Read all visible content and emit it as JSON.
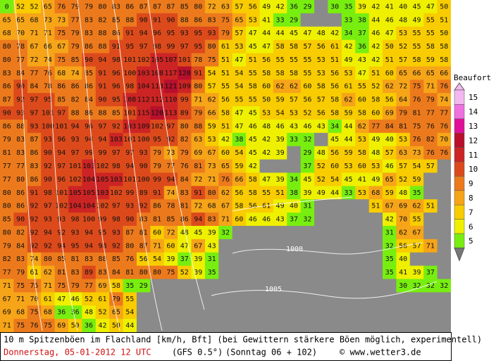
{
  "map": {
    "grid": [
      [
        0,
        52,
        52,
        65,
        76,
        79,
        79,
        80,
        83,
        86,
        87,
        87,
        87,
        85,
        80,
        72,
        63,
        57,
        56,
        49,
        42,
        36,
        29,
        null,
        30,
        35,
        39,
        42,
        41,
        40,
        45,
        47,
        50
      ],
      [
        65,
        65,
        68,
        73,
        73,
        77,
        83,
        82,
        85,
        88,
        90,
        91,
        90,
        88,
        86,
        83,
        75,
        65,
        53,
        41,
        33,
        29,
        null,
        null,
        null,
        33,
        38,
        44,
        46,
        48,
        49,
        55,
        51
      ],
      [
        68,
        70,
        71,
        71,
        75,
        79,
        83,
        88,
        86,
        91,
        94,
        96,
        95,
        93,
        95,
        93,
        79,
        57,
        47,
        44,
        44,
        45,
        47,
        48,
        42,
        34,
        37,
        46,
        47,
        53,
        55,
        55,
        50
      ],
      [
        80,
        78,
        67,
        66,
        67,
        79,
        86,
        88,
        91,
        95,
        97,
        98,
        99,
        97,
        95,
        80,
        61,
        53,
        45,
        47,
        58,
        58,
        57,
        56,
        61,
        42,
        36,
        42,
        50,
        52,
        55,
        58,
        58
      ],
      [
        80,
        77,
        72,
        74,
        75,
        85,
        90,
        94,
        98,
        101,
        102,
        105,
        107,
        101,
        78,
        75,
        51,
        47,
        51,
        56,
        55,
        55,
        55,
        53,
        51,
        49,
        43,
        42,
        51,
        57,
        58,
        59,
        58
      ],
      [
        83,
        84,
        77,
        76,
        68,
        74,
        85,
        91,
        96,
        100,
        103,
        108,
        117,
        120,
        91,
        54,
        51,
        54,
        55,
        58,
        58,
        58,
        55,
        53,
        56,
        53,
        47,
        51,
        60,
        65,
        66,
        65,
        66
      ],
      [
        86,
        90,
        84,
        78,
        86,
        86,
        86,
        91,
        96,
        98,
        104,
        113,
        121,
        109,
        80,
        57,
        55,
        54,
        58,
        60,
        62,
        62,
        60,
        58,
        56,
        61,
        55,
        52,
        62,
        72,
        75,
        71,
        76
      ],
      [
        87,
        92,
        97,
        95,
        85,
        82,
        84,
        90,
        95,
        108,
        112,
        112,
        110,
        99,
        71,
        62,
        56,
        55,
        55,
        50,
        59,
        57,
        56,
        57,
        58,
        62,
        60,
        58,
        56,
        64,
        76,
        79,
        74
      ],
      [
        90,
        93,
        97,
        101,
        97,
        88,
        86,
        88,
        85,
        101,
        115,
        120,
        113,
        89,
        79,
        66,
        58,
        47,
        45,
        53,
        54,
        53,
        52,
        56,
        58,
        59,
        58,
        60,
        69,
        79,
        81,
        77,
        77
      ],
      [
        86,
        88,
        93,
        100,
        101,
        94,
        96,
        97,
        92,
        103,
        109,
        102,
        97,
        80,
        88,
        59,
        51,
        47,
        46,
        48,
        46,
        43,
        46,
        43,
        34,
        44,
        62,
        77,
        84,
        81,
        75,
        76,
        76
      ],
      [
        79,
        83,
        87,
        93,
        96,
        93,
        94,
        94,
        103,
        101,
        100,
        95,
        92,
        82,
        63,
        53,
        42,
        38,
        45,
        42,
        39,
        33,
        32,
        null,
        45,
        44,
        53,
        49,
        40,
        53,
        76,
        82,
        70
      ],
      [
        81,
        83,
        86,
        90,
        94,
        97,
        99,
        99,
        97,
        97,
        93,
        79,
        73,
        79,
        69,
        67,
        60,
        54,
        45,
        42,
        39,
        null,
        29,
        48,
        56,
        59,
        58,
        48,
        57,
        63,
        73,
        76,
        76
      ],
      [
        77,
        77,
        83,
        92,
        97,
        101,
        103,
        102,
        98,
        94,
        90,
        79,
        77,
        76,
        81,
        73,
        65,
        59,
        42,
        null,
        null,
        null,
        37,
        52,
        60,
        53,
        60,
        53,
        46,
        57,
        54,
        57,
        null
      ],
      [
        77,
        80,
        86,
        90,
        96,
        102,
        104,
        105,
        103,
        101,
        100,
        99,
        94,
        84,
        72,
        71,
        76,
        66,
        58,
        47,
        39,
        34,
        45,
        52,
        54,
        45,
        41,
        49,
        65,
        52,
        59,
        null,
        null
      ],
      [
        80,
        86,
        91,
        98,
        101,
        105,
        105,
        103,
        102,
        99,
        89,
        91,
        74,
        83,
        91,
        80,
        62,
        56,
        58,
        55,
        51,
        38,
        39,
        49,
        44,
        33,
        53,
        68,
        59,
        48,
        35,
        null,
        null
      ],
      [
        80,
        86,
        92,
        97,
        102,
        104,
        104,
        102,
        97,
        93,
        92,
        86,
        78,
        81,
        72,
        68,
        67,
        58,
        56,
        61,
        49,
        40,
        31,
        null,
        null,
        null,
        null,
        51,
        67,
        69,
        62,
        51,
        null
      ],
      [
        85,
        90,
        92,
        93,
        93,
        98,
        100,
        99,
        98,
        90,
        83,
        81,
        85,
        86,
        94,
        83,
        71,
        60,
        46,
        46,
        43,
        37,
        32,
        null,
        null,
        null,
        null,
        null,
        42,
        70,
        55,
        null,
        null
      ],
      [
        80,
        82,
        92,
        94,
        92,
        93,
        94,
        95,
        93,
        87,
        81,
        60,
        72,
        48,
        45,
        39,
        32,
        null,
        null,
        null,
        null,
        null,
        null,
        null,
        null,
        null,
        null,
        null,
        31,
        62,
        67,
        null,
        null
      ],
      [
        79,
        84,
        92,
        92,
        94,
        95,
        94,
        98,
        92,
        80,
        87,
        71,
        60,
        47,
        67,
        43,
        null,
        null,
        null,
        null,
        null,
        null,
        null,
        null,
        null,
        null,
        null,
        null,
        32,
        56,
        57,
        71,
        null
      ],
      [
        82,
        83,
        74,
        80,
        85,
        81,
        83,
        88,
        85,
        76,
        56,
        54,
        39,
        37,
        39,
        31,
        null,
        null,
        null,
        null,
        null,
        null,
        null,
        null,
        null,
        null,
        null,
        null,
        35,
        40,
        null,
        null,
        null
      ],
      [
        77,
        79,
        61,
        62,
        81,
        83,
        89,
        83,
        84,
        81,
        80,
        80,
        75,
        52,
        39,
        35,
        null,
        null,
        null,
        null,
        null,
        null,
        null,
        null,
        null,
        null,
        null,
        null,
        35,
        41,
        39,
        37,
        null
      ],
      [
        71,
        75,
        75,
        71,
        75,
        79,
        77,
        69,
        58,
        35,
        29,
        null,
        null,
        null,
        null,
        null,
        null,
        null,
        null,
        null,
        null,
        null,
        null,
        null,
        null,
        null,
        null,
        null,
        null,
        30,
        32,
        32,
        32
      ],
      [
        67,
        71,
        70,
        61,
        47,
        46,
        52,
        61,
        79,
        55,
        null,
        null,
        null,
        null,
        null,
        null,
        null,
        null,
        null,
        null,
        null,
        null,
        null,
        null,
        null,
        null,
        null,
        null,
        null,
        null,
        null,
        null,
        null
      ],
      [
        69,
        68,
        75,
        68,
        36,
        36,
        48,
        52,
        65,
        54,
        null,
        null,
        null,
        null,
        null,
        null,
        null,
        null,
        null,
        null,
        null,
        null,
        null,
        null,
        null,
        null,
        null,
        null,
        null,
        null,
        null,
        null,
        null
      ],
      [
        71,
        75,
        76,
        75,
        69,
        50,
        36,
        42,
        50,
        44,
        null,
        null,
        null,
        null,
        null,
        null,
        null,
        null,
        null,
        null,
        null,
        null,
        null,
        null,
        null,
        null,
        null,
        null,
        null,
        null,
        null,
        null,
        null
      ]
    ],
    "isobar_labels": [
      "1000",
      "1005"
    ]
  },
  "legend": {
    "title": "Beaufort",
    "levels": [
      {
        "level": 15,
        "color": "#f4b8f0"
      },
      {
        "level": 14,
        "color": "#f070e0"
      },
      {
        "level": 13,
        "color": "#e0109a"
      },
      {
        "level": 12,
        "color": "#b8102c"
      },
      {
        "level": 11,
        "color": "#cc2424"
      },
      {
        "level": 10,
        "color": "#dc4a1c"
      },
      {
        "level": 9,
        "color": "#ec7a1c"
      },
      {
        "level": 8,
        "color": "#f6a418"
      },
      {
        "level": 7,
        "color": "#f8cc00"
      },
      {
        "level": 6,
        "color": "#eef000"
      },
      {
        "level": 5,
        "color": "#78ee10"
      }
    ]
  },
  "footer": {
    "description": "10 m Spitzenböen im Flachland [km/h, Bft] (bei Gewittern stärkere Böen möglich, experimentell)",
    "date": "Donnerstag, 05-01-2012  12 UTC",
    "model": "(GFS 0.5°)",
    "run": "(Sonntag 06 + 102)",
    "copyright": "© www.wetter3.de"
  }
}
